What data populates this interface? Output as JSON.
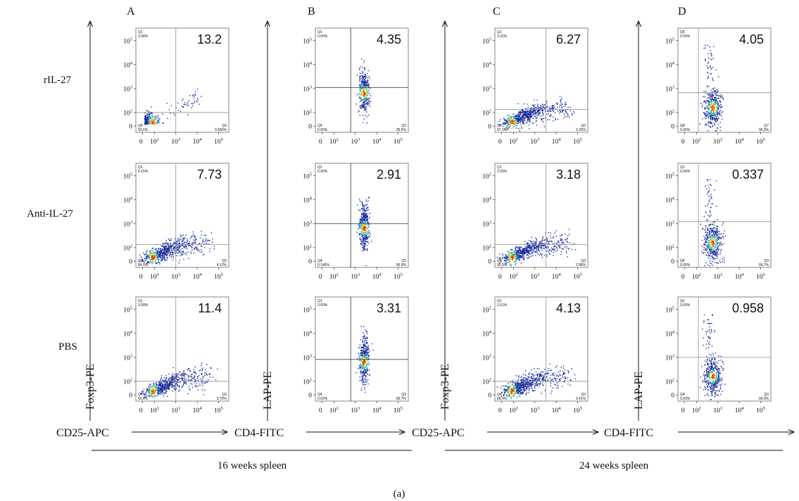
{
  "figure_label": "(a)",
  "column_letters": [
    "A",
    "B",
    "C",
    "D"
  ],
  "row_labels": [
    "rIL-27",
    "Anti-IL-27",
    "PBS"
  ],
  "y_axis_titles": [
    "Foxp3-PE",
    "LAP-PE",
    "Foxp3-PE",
    "LAP-PE"
  ],
  "x_axis_titles": [
    "CD25-APC",
    "CD4-FITC",
    "CD25-APC",
    "CD4-FITC"
  ],
  "group_labels": [
    "16 weeks spleen",
    "24 weeks spleen"
  ],
  "colors": {
    "ink": "#111111",
    "gate_light": "#9a9a9a",
    "gate_dark": "#444444",
    "density_low": "#1c2f9e",
    "density_mid": "#2fb8c4",
    "density_high": "#e9e236",
    "density_peak": "#e23a1e"
  },
  "chart_data": [
    {
      "type": "scatter",
      "column": "A",
      "row": "rIL-27",
      "xlabel": "CD25-APC",
      "ylabel": "Foxp3-PE",
      "x_ticks": [
        "0",
        "10^2",
        "10^3",
        "10^4",
        "10^5"
      ],
      "y_ticks": [
        "0",
        "10^2",
        "10^3",
        "10^4",
        "10^5"
      ],
      "q1": {
        "name": "Q1",
        "value": "2.58%"
      },
      "q3": {
        "name": "Q3",
        "value": "0.666%"
      },
      "q4": {
        "name": "Q4",
        "value": "93.6%"
      },
      "percent": "13.2",
      "populations": [
        "low-low",
        "upper-diagonal"
      ]
    },
    {
      "type": "scatter",
      "column": "B",
      "row": "rIL-27",
      "xlabel": "CD4-FITC",
      "ylabel": "LAP-PE",
      "x_ticks": [
        "0",
        "10^2",
        "10^3",
        "10^4",
        "10^5"
      ],
      "y_ticks": [
        "0",
        "10^2",
        "10^3",
        "10^4",
        "10^5"
      ],
      "q1": {
        "name": "Q1",
        "value": "0.00%"
      },
      "q3": {
        "name": "Q3",
        "value": "95.6%"
      },
      "q4": {
        "name": "Q4",
        "value": "0.00%"
      },
      "percent": "4.35",
      "populations": [
        "column"
      ]
    },
    {
      "type": "scatter",
      "column": "C",
      "row": "rIL-27",
      "xlabel": "CD25-APC",
      "ylabel": "Foxp3-PE",
      "x_ticks": [
        "0",
        "10^2",
        "10^3",
        "10^4",
        "10^5"
      ],
      "y_ticks": [
        "0",
        "10^2",
        "10^3",
        "10^4",
        "10^5"
      ],
      "q1": {
        "name": "Q1",
        "value": "3.32%"
      },
      "q3": {
        "name": "Q3",
        "value": "3.33%"
      },
      "q4": {
        "name": "Q4",
        "value": "87.1%"
      },
      "percent": "6.27",
      "populations": [
        "diagonal-spread"
      ]
    },
    {
      "type": "scatter",
      "column": "D",
      "row": "rIL-27",
      "xlabel": "CD4-FITC",
      "ylabel": "LAP-PE",
      "x_ticks": [
        "0",
        "10^2",
        "10^3",
        "10^4",
        "10^5"
      ],
      "y_ticks": [
        "0",
        "10^2",
        "10^3",
        "10^4",
        "10^5"
      ],
      "q1": {
        "name": "Q5",
        "value": "0.00%"
      },
      "q3": {
        "name": "Q7",
        "value": "96.0%"
      },
      "q4": {
        "name": "Q8",
        "value": "0.00%"
      },
      "percent": "4.05",
      "populations": [
        "blob"
      ]
    },
    {
      "type": "scatter",
      "column": "A",
      "row": "Anti-IL-27",
      "xlabel": "CD25-APC",
      "ylabel": "Foxp3-PE",
      "x_ticks": [
        "0",
        "10^2",
        "10^3",
        "10^4",
        "10^5"
      ],
      "y_ticks": [
        "0",
        "10^2",
        "10^3",
        "10^4",
        "10^5"
      ],
      "q1": {
        "name": "Q1",
        "value": "4.15%"
      },
      "q3": {
        "name": "Q3",
        "value": "4.12%"
      },
      "q4": {
        "name": "Q4",
        "value": "84.0%"
      },
      "percent": "7.73",
      "populations": [
        "diagonal-spread"
      ]
    },
    {
      "type": "scatter",
      "column": "B",
      "row": "Anti-IL-27",
      "xlabel": "CD4-FITC",
      "ylabel": "LAP-PE",
      "x_ticks": [
        "0",
        "10^2",
        "10^3",
        "10^4",
        "10^5"
      ],
      "y_ticks": [
        "0",
        "10^2",
        "10^3",
        "10^4",
        "10^5"
      ],
      "q1": {
        "name": "Q1",
        "value": "0.00%"
      },
      "q3": {
        "name": "Q3",
        "value": "96.9%"
      },
      "q4": {
        "name": "Q4",
        "value": "0.146%"
      },
      "percent": "2.91",
      "populations": [
        "column"
      ]
    },
    {
      "type": "scatter",
      "column": "C",
      "row": "Anti-IL-27",
      "xlabel": "CD25-APC",
      "ylabel": "Foxp3-PE",
      "x_ticks": [
        "0",
        "10^2",
        "10^3",
        "10^4",
        "10^5"
      ],
      "y_ticks": [
        "0",
        "10^2",
        "10^3",
        "10^4",
        "10^5"
      ],
      "q1": {
        "name": "Q1",
        "value": "2.93%"
      },
      "q3": {
        "name": "Q3",
        "value": "2.98%"
      },
      "q4": {
        "name": "Q4",
        "value": "90.9%"
      },
      "percent": "3.18",
      "populations": [
        "diagonal-spread"
      ]
    },
    {
      "type": "scatter",
      "column": "D",
      "row": "Anti-IL-27",
      "xlabel": "CD4-FITC",
      "ylabel": "LAP-PE",
      "x_ticks": [
        "0",
        "10^2",
        "10^3",
        "10^4",
        "10^5"
      ],
      "y_ticks": [
        "0",
        "10^2",
        "10^3",
        "10^4",
        "10^5"
      ],
      "q1": {
        "name": "Q1",
        "value": "0.00%"
      },
      "q3": {
        "name": "Q3",
        "value": "99.7%"
      },
      "q4": {
        "name": "Q4",
        "value": "0.00%"
      },
      "percent": "0.337",
      "populations": [
        "blob"
      ]
    },
    {
      "type": "scatter",
      "column": "A",
      "row": "PBS",
      "xlabel": "CD25-APC",
      "ylabel": "Foxp3-PE",
      "x_ticks": [
        "0",
        "10^2",
        "10^3",
        "10^4",
        "10^5"
      ],
      "y_ticks": [
        "0",
        "10^2",
        "10^3",
        "10^4",
        "10^5"
      ],
      "q1": {
        "name": "Q1",
        "value": "3.99%"
      },
      "q3": {
        "name": "Q3",
        "value": "3.79%"
      },
      "q4": {
        "name": "Q4",
        "value": "80.8%"
      },
      "percent": "11.4",
      "populations": [
        "diagonal-spread"
      ]
    },
    {
      "type": "scatter",
      "column": "B",
      "row": "PBS",
      "xlabel": "CD4-FITC",
      "ylabel": "LAP-PE",
      "x_ticks": [
        "0",
        "10^2",
        "10^3",
        "10^4",
        "10^5"
      ],
      "y_ticks": [
        "0",
        "10^2",
        "10^3",
        "10^4",
        "10^5"
      ],
      "q1": {
        "name": "Q1",
        "value": "0.00%"
      },
      "q3": {
        "name": "Q3",
        "value": "96.7%"
      },
      "q4": {
        "name": "Q4",
        "value": "0.00%"
      },
      "percent": "3.31",
      "populations": [
        "column"
      ]
    },
    {
      "type": "scatter",
      "column": "C",
      "row": "PBS",
      "xlabel": "CD25-APC",
      "ylabel": "Foxp3-PE",
      "x_ticks": [
        "0",
        "10^2",
        "10^3",
        "10^4",
        "10^5"
      ],
      "y_ticks": [
        "0",
        "10^2",
        "10^3",
        "10^4",
        "10^5"
      ],
      "q1": {
        "name": "Q1",
        "value": "2.61%"
      },
      "q3": {
        "name": "Q3",
        "value": "3.41%"
      },
      "q4": {
        "name": "Q4",
        "value": "89.9%"
      },
      "percent": "4.13",
      "populations": [
        "diagonal-spread"
      ]
    },
    {
      "type": "scatter",
      "column": "D",
      "row": "PBS",
      "xlabel": "CD4-FITC",
      "ylabel": "LAP-PE",
      "x_ticks": [
        "0",
        "10^2",
        "10^3",
        "10^4",
        "10^5"
      ],
      "y_ticks": [
        "0",
        "10^2",
        "10^3",
        "10^4",
        "10^5"
      ],
      "q1": {
        "name": "Q1",
        "value": "0.00%"
      },
      "q3": {
        "name": "Q3",
        "value": "99.0%"
      },
      "q4": {
        "name": "Q4",
        "value": "0.03%"
      },
      "percent": "0.958",
      "populations": [
        "blob"
      ]
    }
  ]
}
